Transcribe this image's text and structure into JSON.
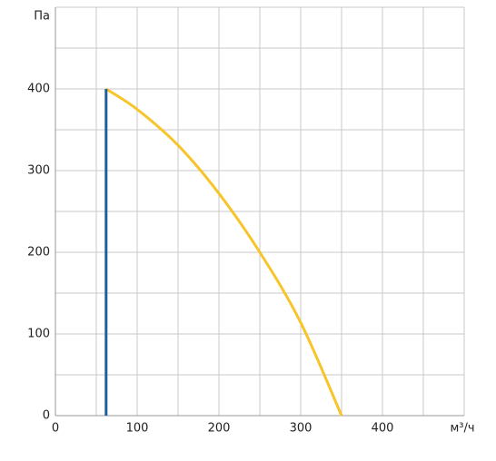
{
  "chart_data": {
    "type": "line",
    "xlabel": "м³/ч",
    "ylabel": "Па",
    "xlim": [
      0,
      500
    ],
    "ylim": [
      0,
      500
    ],
    "xticks": [
      0,
      100,
      200,
      300,
      400
    ],
    "yticks": [
      0,
      100,
      200,
      300,
      400
    ],
    "xgrid": [
      50,
      100,
      150,
      200,
      250,
      300,
      350,
      400,
      450,
      500
    ],
    "ygrid": [
      50,
      100,
      150,
      200,
      250,
      300,
      350,
      400,
      450,
      500
    ],
    "grid": true,
    "series": [
      {
        "color": "#f7c42a",
        "x": [
          62,
          100,
          150,
          200,
          250,
          300,
          350
        ],
        "values": [
          400,
          375,
          331,
          272,
          200,
          114,
          0
        ]
      },
      {
        "color": "#1f5fa0",
        "x": [
          62,
          62
        ],
        "values": [
          0,
          400
        ]
      }
    ]
  }
}
